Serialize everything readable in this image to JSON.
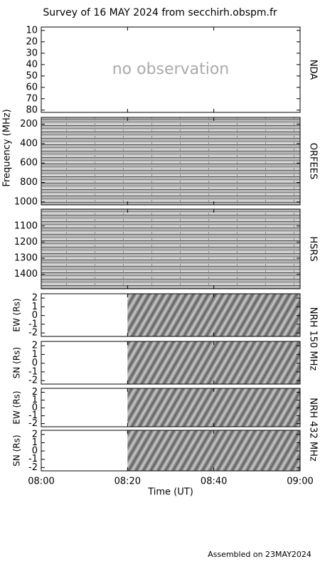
{
  "chart_data": {
    "type": "spectrogram",
    "title": "Survey of 16 MAY 2024 from secchirh.obspm.fr",
    "xlabel": "Time (UT)",
    "ylabel": "Frequency (MHz)",
    "footer": "Assembled on 23MAY2024",
    "xlim": [
      0,
      60
    ],
    "xticks": [
      {
        "value": 0,
        "label": "08:00"
      },
      {
        "value": 20,
        "label": "08:20"
      },
      {
        "value": 40,
        "label": "08:40"
      },
      {
        "value": 60,
        "label": "09:00"
      }
    ],
    "panels": [
      {
        "side_label": "NDA",
        "ylim": [
          82,
          7
        ],
        "yticks": [
          10,
          20,
          30,
          40,
          50,
          60,
          70,
          80
        ],
        "annotation": "no observation"
      },
      {
        "side_label": "ORFEES",
        "ylim": [
          1030,
          130
        ],
        "yticks": [
          200,
          400,
          600,
          800,
          1000
        ],
        "coverage": [
          0,
          60
        ]
      },
      {
        "side_label": "HSRS",
        "ylim": [
          1490,
          995
        ],
        "yticks": [
          1100,
          1200,
          1300,
          1400
        ],
        "coverage": [
          0,
          60
        ]
      },
      {
        "side_label": "NRH 150 MHz",
        "axis_label": "EW (Rs)",
        "ylim": [
          -2.4,
          2.5
        ],
        "yticks": [
          -2,
          -1,
          0,
          1,
          2
        ],
        "coverage": [
          20,
          60
        ]
      },
      {
        "axis_label": "SN (Rs)",
        "ylim": [
          -2.4,
          2.5
        ],
        "yticks": [
          -2,
          -1,
          0,
          1,
          2
        ],
        "coverage": [
          20,
          60
        ]
      },
      {
        "side_label": "NRH 432 MHz",
        "axis_label": "EW (Rs)",
        "ylim": [
          -2.4,
          2.5
        ],
        "yticks": [
          -2,
          -1,
          0,
          1,
          2
        ],
        "coverage": [
          20,
          60
        ]
      },
      {
        "axis_label": "SN (Rs)",
        "ylim": [
          -2.4,
          2.5
        ],
        "yticks": [
          -2,
          -1,
          0,
          1,
          2
        ],
        "coverage": [
          20,
          60
        ]
      }
    ]
  }
}
